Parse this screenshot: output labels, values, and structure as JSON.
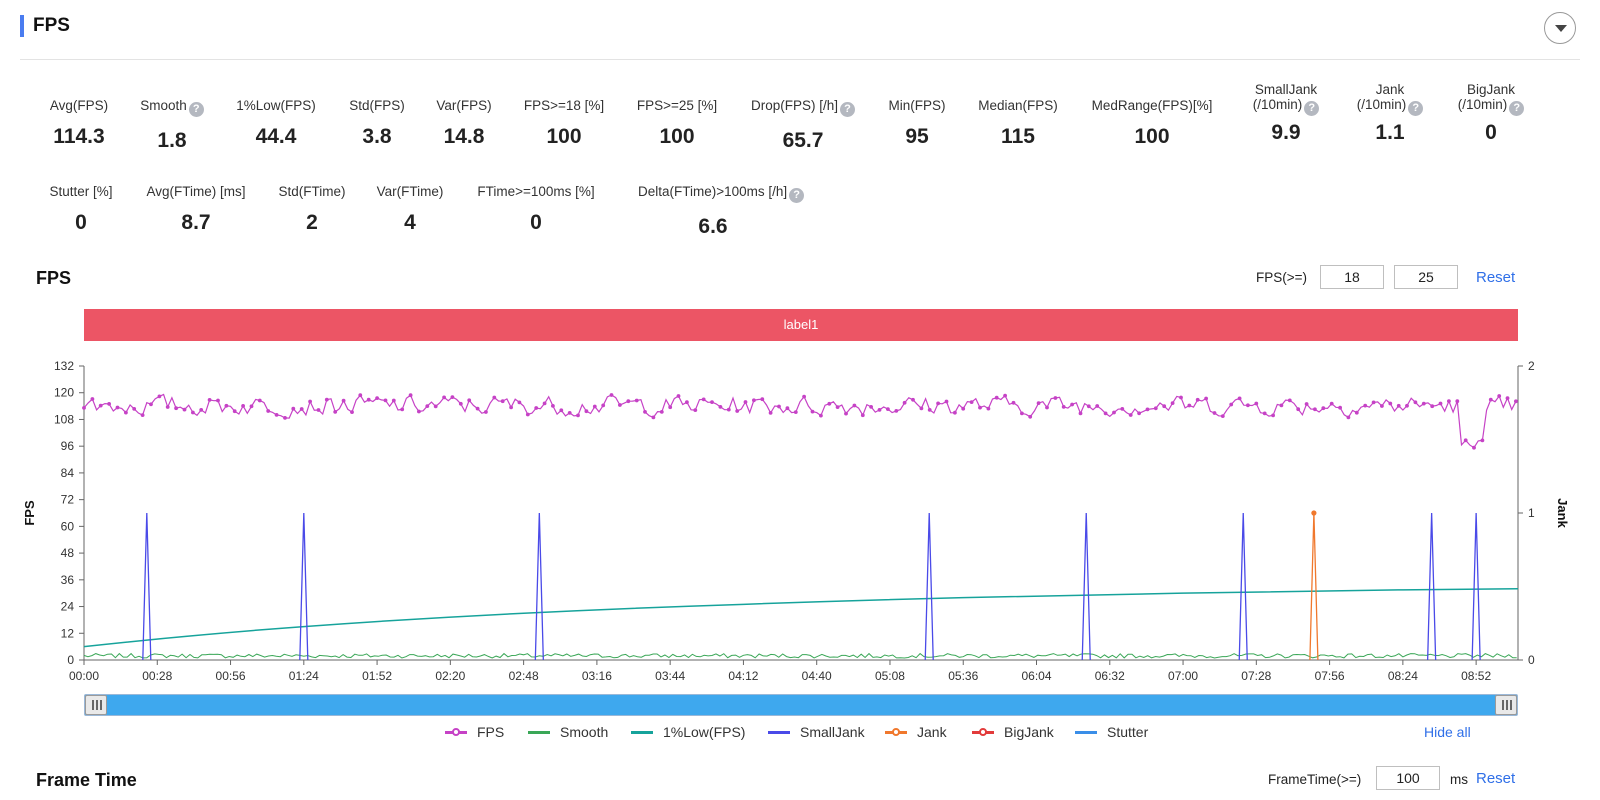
{
  "header": {
    "title": "FPS"
  },
  "stats_row1": [
    {
      "label": "Avg(FPS)",
      "value": "114.3",
      "help": false
    },
    {
      "label": "Smooth",
      "value": "1.8",
      "help": true
    },
    {
      "label": "1%Low(FPS)",
      "value": "44.4",
      "help": false
    },
    {
      "label": "Std(FPS)",
      "value": "3.8",
      "help": false
    },
    {
      "label": "Var(FPS)",
      "value": "14.8",
      "help": false
    },
    {
      "label": "FPS>=18 [%]",
      "value": "100",
      "help": false
    },
    {
      "label": "FPS>=25 [%]",
      "value": "100",
      "help": false
    },
    {
      "label": "Drop(FPS) [/h]",
      "value": "65.7",
      "help": true
    },
    {
      "label": "Min(FPS)",
      "value": "95",
      "help": false
    },
    {
      "label": "Median(FPS)",
      "value": "115",
      "help": false
    },
    {
      "label": "MedRange(FPS)[%]",
      "value": "100",
      "help": false
    },
    {
      "label": "SmallJank",
      "label2": "(/10min)",
      "value": "9.9",
      "help": true
    },
    {
      "label": "Jank",
      "label2": "(/10min)",
      "value": "1.1",
      "help": true
    },
    {
      "label": "BigJank",
      "label2": "(/10min)",
      "value": "0",
      "help": true
    }
  ],
  "stats_row2": [
    {
      "label": "Stutter [%]",
      "value": "0",
      "help": false
    },
    {
      "label": "Avg(FTime) [ms]",
      "value": "8.7",
      "help": false
    },
    {
      "label": "Std(FTime)",
      "value": "2",
      "help": false
    },
    {
      "label": "Var(FTime)",
      "value": "4",
      "help": false
    },
    {
      "label": "FTime>=100ms [%]",
      "value": "0",
      "help": false
    },
    {
      "label": "Delta(FTime)>100ms [/h]",
      "value": "6.6",
      "help": true
    }
  ],
  "fps_section": {
    "title": "FPS",
    "threshold_label": "FPS(>=)",
    "threshold_1": "18",
    "threshold_2": "25",
    "reset_label": "Reset",
    "label_bar": "label1"
  },
  "legend": {
    "items": [
      {
        "name": "FPS",
        "color": "#c642c6",
        "marker": true
      },
      {
        "name": "Smooth",
        "color": "#3aa757",
        "marker": false
      },
      {
        "name": "1%Low(FPS)",
        "color": "#16a39b",
        "marker": false
      },
      {
        "name": "SmallJank",
        "color": "#4a4ae8",
        "marker": false
      },
      {
        "name": "Jank",
        "color": "#f0782d",
        "marker": true
      },
      {
        "name": "BigJank",
        "color": "#e23b3b",
        "marker": true
      },
      {
        "name": "Stutter",
        "color": "#3a8ee8",
        "marker": false
      }
    ],
    "hide_all_label": "Hide all"
  },
  "frame_time_section": {
    "title": "Frame Time",
    "threshold_label": "FrameTime(>=)",
    "threshold_value": "100",
    "unit": "ms",
    "reset_label": "Reset"
  },
  "chart_data": {
    "type": "line",
    "ylabel": "FPS",
    "y2label": "Jank",
    "ylim": [
      0,
      132
    ],
    "y_ticks": [
      0,
      12,
      24,
      36,
      48,
      60,
      72,
      84,
      96,
      108,
      120,
      132
    ],
    "y2lim": [
      0,
      2
    ],
    "y2_ticks": [
      0,
      1,
      2
    ],
    "xlim_seconds": [
      0,
      548
    ],
    "x_tick_labels": [
      "00:00",
      "00:28",
      "00:56",
      "01:24",
      "01:52",
      "02:20",
      "02:48",
      "03:16",
      "03:44",
      "04:12",
      "04:40",
      "05:08",
      "05:36",
      "06:04",
      "06:32",
      "07:00",
      "07:28",
      "07:56",
      "08:24",
      "08:52"
    ],
    "legend_position": "bottom",
    "series": [
      {
        "name": "FPS",
        "axis": "left",
        "baseline": 114.3,
        "min": 95,
        "max": 121
      },
      {
        "name": "Smooth",
        "axis": "left",
        "baseline": 1.8
      },
      {
        "name": "1%Low(FPS)",
        "axis": "left",
        "x": [
          "00:00",
          "01:24",
          "02:48",
          "04:12",
          "05:36",
          "07:00",
          "08:24",
          "09:08"
        ],
        "values": [
          6,
          15,
          21,
          25,
          28,
          30,
          31.5,
          32
        ]
      },
      {
        "name": "SmallJank",
        "axis": "right",
        "x": [
          "00:24",
          "01:24",
          "02:54",
          "05:23",
          "06:23",
          "07:23",
          "08:35",
          "08:52"
        ],
        "values": [
          1,
          1,
          1,
          1,
          1,
          1,
          1,
          1
        ]
      },
      {
        "name": "Jank",
        "axis": "right",
        "x": [
          "07:50"
        ],
        "values": [
          1
        ]
      },
      {
        "name": "BigJank",
        "axis": "right",
        "x": [],
        "values": []
      },
      {
        "name": "Stutter",
        "axis": "left",
        "x": [],
        "values": []
      }
    ]
  }
}
